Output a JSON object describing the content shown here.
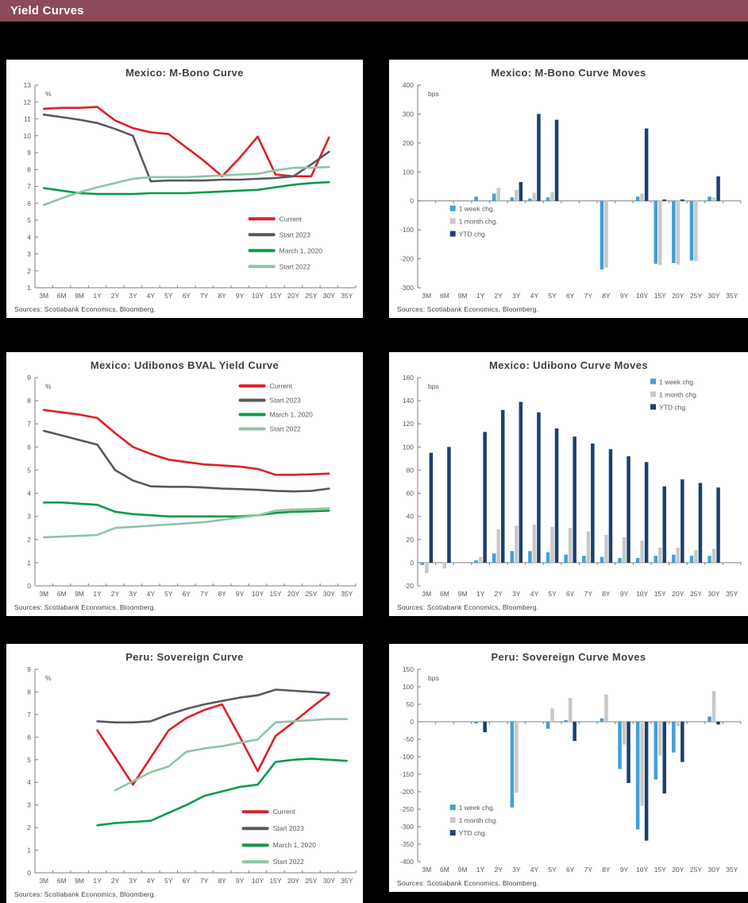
{
  "header": {
    "title": "Yield Curves"
  },
  "colors": {
    "header_bg": "#8C4A5B",
    "page_bg": "#000000",
    "panel_bg": "#FFFFFF",
    "title_text": "#404040",
    "axis_text": "#58595B",
    "axis_line": "#7F7F7F",
    "red": "#E01E26",
    "dark_gray": "#58595B",
    "green": "#0B9A48",
    "light_green": "#8DC5A5",
    "light_blue": "#41A0D8",
    "bar_gray": "#C8C8C8",
    "navy": "#1C406F"
  },
  "categories": [
    "3M",
    "6M",
    "9M",
    "1Y",
    "2Y",
    "3Y",
    "4Y",
    "5Y",
    "6Y",
    "7Y",
    "8Y",
    "9Y",
    "10Y",
    "15Y",
    "20Y",
    "25Y",
    "30Y",
    "35Y"
  ],
  "chart_data": [
    {
      "type": "line",
      "title": "Mexico: M-Bono Curve",
      "unit": "%",
      "ylim": [
        1,
        13
      ],
      "ytick": 1,
      "legend": {
        "x": 0.67,
        "y": 0.66,
        "spacing": 20
      },
      "series": [
        {
          "name": "Current",
          "color": "red",
          "values": [
            11.6,
            11.65,
            11.65,
            11.7,
            10.9,
            10.45,
            10.2,
            10.1,
            9.3,
            8.5,
            7.6,
            8.7,
            9.95,
            7.7,
            7.6,
            7.6,
            9.9,
            null
          ]
        },
        {
          "name": "Start 2023",
          "color": "dark_gray",
          "values": [
            11.25,
            11.1,
            10.95,
            10.75,
            10.4,
            10.0,
            7.3,
            7.35,
            7.35,
            7.35,
            7.4,
            7.4,
            7.45,
            7.5,
            7.6,
            8.3,
            9.05,
            null
          ]
        },
        {
          "name": "March 1, 2020",
          "color": "green",
          "values": [
            6.9,
            6.75,
            6.6,
            6.55,
            6.55,
            6.55,
            6.6,
            6.6,
            6.6,
            6.65,
            6.7,
            6.75,
            6.8,
            6.95,
            7.1,
            7.2,
            7.25,
            null
          ]
        },
        {
          "name": "Start 2022",
          "color": "light_green",
          "values": [
            5.9,
            6.3,
            6.65,
            6.95,
            7.2,
            7.45,
            7.55,
            7.55,
            7.55,
            7.6,
            7.65,
            7.7,
            7.75,
            7.95,
            8.1,
            8.1,
            8.15,
            null
          ]
        }
      ],
      "source": "Sources: Scotiabank Economics, Bloomberg."
    },
    {
      "type": "bar",
      "title": "Mexico: M-Bono Curve Moves",
      "unit": "bps",
      "ylim": [
        -300,
        400
      ],
      "ytick": 100,
      "legend": {
        "x": 0.1,
        "y": 0.62,
        "spacing": 16
      },
      "series": [
        {
          "name": "1 week chg.",
          "color": "light_blue",
          "values": [
            null,
            null,
            null,
            15,
            25,
            12,
            8,
            12,
            null,
            null,
            -237,
            null,
            15,
            -217,
            -215,
            -206,
            15,
            null
          ]
        },
        {
          "name": "1 month chg.",
          "color": "bar_gray",
          "values": [
            null,
            null,
            null,
            null,
            45,
            38,
            28,
            30,
            null,
            null,
            -230,
            null,
            25,
            -222,
            -220,
            -208,
            12,
            null
          ]
        },
        {
          "name": "YTD chg.",
          "color": "navy",
          "values": [
            null,
            null,
            null,
            null,
            null,
            65,
            300,
            280,
            null,
            null,
            null,
            null,
            250,
            5,
            5,
            null,
            85,
            null
          ]
        }
      ],
      "source": "Sources: Scotiabank Economics, Bloomberg."
    },
    {
      "type": "line",
      "title": "Mexico: Udibonos BVAL Yield Curve",
      "unit": "%",
      "ylim": [
        0,
        9
      ],
      "ytick": 1,
      "legend": {
        "x": 0.64,
        "y": 0.04,
        "spacing": 18
      },
      "series": [
        {
          "name": "Current",
          "color": "red",
          "values": [
            7.6,
            7.5,
            7.4,
            7.25,
            6.6,
            6.0,
            5.7,
            5.45,
            5.35,
            5.25,
            5.2,
            5.15,
            5.05,
            4.8,
            4.8,
            4.82,
            4.85,
            null
          ]
        },
        {
          "name": "Start 2023",
          "color": "dark_gray",
          "values": [
            6.7,
            6.5,
            6.3,
            6.1,
            5.0,
            4.55,
            4.3,
            4.28,
            4.28,
            4.25,
            4.2,
            4.18,
            4.15,
            4.1,
            4.08,
            4.1,
            4.2,
            null
          ]
        },
        {
          "name": "March 1, 2020",
          "color": "green",
          "values": [
            3.6,
            3.6,
            3.55,
            3.5,
            3.2,
            3.1,
            3.05,
            3.0,
            3.0,
            3.0,
            3.0,
            3.0,
            3.05,
            3.15,
            3.2,
            3.22,
            3.25,
            null
          ]
        },
        {
          "name": "Start 2022",
          "color": "light_green",
          "values": [
            2.1,
            2.13,
            2.16,
            2.2,
            2.5,
            2.55,
            2.6,
            2.65,
            2.7,
            2.75,
            2.85,
            2.95,
            3.05,
            3.25,
            3.3,
            3.32,
            3.35,
            null
          ]
        }
      ],
      "source": "Sources: Scotiabank Economics, Bloomberg."
    },
    {
      "type": "bar",
      "title": "Mexico: Udibono Curve Moves",
      "unit": "bps",
      "ylim": [
        -20,
        160
      ],
      "ytick": 20,
      "legend": {
        "x": 0.72,
        "y": 0.03,
        "spacing": 16
      },
      "series": [
        {
          "name": "1 week chg.",
          "color": "light_blue",
          "values": [
            -2,
            null,
            null,
            2,
            8,
            10,
            10,
            9,
            7,
            6,
            5,
            4,
            4,
            6,
            7,
            6,
            6,
            null
          ]
        },
        {
          "name": "1 month chg.",
          "color": "bar_gray",
          "values": [
            -9,
            -5,
            null,
            5,
            29,
            32,
            33,
            31,
            30,
            27,
            24,
            22,
            19,
            13,
            13,
            11,
            12,
            null
          ]
        },
        {
          "name": "YTD chg.",
          "color": "navy",
          "values": [
            95,
            100,
            null,
            113,
            132,
            139,
            130,
            116,
            109,
            103,
            98,
            92,
            87,
            66,
            72,
            69,
            65,
            null
          ]
        }
      ],
      "source": "Sources: Scotiabank Economics, Bloomberg."
    },
    {
      "type": "line",
      "title": "Peru: Sovereign Curve",
      "unit": "%",
      "ylim": [
        0,
        9
      ],
      "ytick": 1,
      "legend": {
        "x": 0.65,
        "y": 0.7,
        "spacing": 21
      },
      "series": [
        {
          "name": "Current",
          "color": "red",
          "values": [
            null,
            null,
            null,
            6.3,
            5.1,
            3.9,
            5.1,
            6.3,
            6.85,
            7.2,
            7.45,
            6.0,
            4.5,
            6.05,
            6.65,
            7.3,
            7.9,
            null
          ]
        },
        {
          "name": "Start 2023",
          "color": "dark_gray",
          "values": [
            null,
            null,
            null,
            6.7,
            6.65,
            6.65,
            6.7,
            7.0,
            7.25,
            7.45,
            7.6,
            7.75,
            7.85,
            8.1,
            8.05,
            8.0,
            7.95,
            null
          ]
        },
        {
          "name": "March 1, 2020",
          "color": "green",
          "values": [
            null,
            null,
            null,
            2.1,
            2.2,
            2.25,
            2.3,
            2.65,
            3.0,
            3.4,
            3.6,
            3.8,
            3.9,
            4.9,
            5.0,
            5.05,
            5.0,
            4.95
          ]
        },
        {
          "name": "Start 2022",
          "color": "light_green",
          "values": [
            null,
            null,
            null,
            null,
            3.65,
            4.05,
            4.45,
            4.7,
            5.35,
            5.5,
            5.6,
            5.75,
            5.9,
            6.65,
            6.7,
            6.75,
            6.8,
            6.8
          ]
        }
      ],
      "source": "Sources: Scotiabank Economics, Bloomberg."
    },
    {
      "type": "bar",
      "title": "Peru: Sovereign Curve Moves",
      "unit": "bps",
      "ylim": [
        -400,
        150
      ],
      "ytick": 50,
      "legend": {
        "x": 0.1,
        "y": 0.73,
        "spacing": 16
      },
      "series": [
        {
          "name": "1 week chg.",
          "color": "light_blue",
          "values": [
            null,
            null,
            null,
            -5,
            null,
            -245,
            null,
            -20,
            5,
            null,
            10,
            -135,
            -308,
            -165,
            -88,
            null,
            15,
            null
          ]
        },
        {
          "name": "1 month chg.",
          "color": "bar_gray",
          "values": [
            null,
            null,
            null,
            null,
            null,
            -203,
            null,
            38,
            68,
            null,
            78,
            -65,
            -240,
            -97,
            -12,
            null,
            88,
            null
          ]
        },
        {
          "name": "YTD chg.",
          "color": "navy",
          "values": [
            null,
            null,
            null,
            -30,
            null,
            null,
            null,
            null,
            -55,
            null,
            null,
            -175,
            -340,
            -205,
            -115,
            null,
            -8,
            null
          ]
        }
      ],
      "source": "Sources: Scotiabank Economics, Bloomberg."
    }
  ]
}
